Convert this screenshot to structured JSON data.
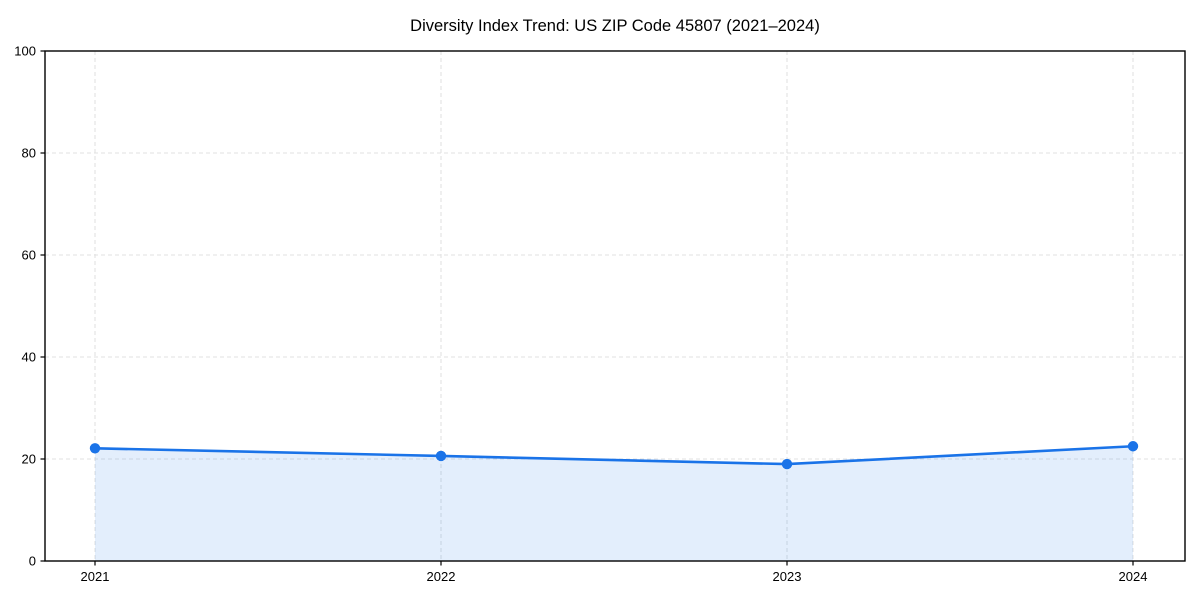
{
  "title": "Diversity Index Trend: US ZIP Code 45807 (2021–2024)",
  "colors": {
    "background": "#ffffff",
    "line": "#1a73e8",
    "marker": "#1a73e8",
    "fill": "rgba(26,115,232,0.12)",
    "grid": "#e2e2e2",
    "axis": "#000000",
    "text": "#000000"
  },
  "chart_data": {
    "type": "area",
    "title": "Diversity Index Trend: US ZIP Code 45807 (2021–2024)",
    "categories": [
      "2021",
      "2022",
      "2023",
      "2024"
    ],
    "values": [
      22.1,
      20.6,
      19.0,
      22.5
    ],
    "xlabel": "",
    "ylabel": "",
    "ylim": [
      0,
      100
    ],
    "y_ticks": [
      0,
      20,
      40,
      60,
      80,
      100
    ],
    "grid": "dashed-both-axes",
    "legend": "none",
    "marker": "circle",
    "fill_to_baseline": true
  }
}
